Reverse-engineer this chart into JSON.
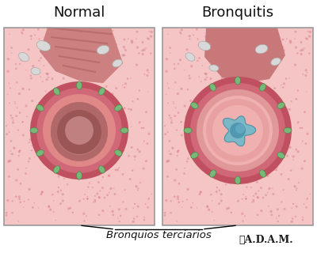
{
  "title_normal": "Normal",
  "title_bronquitis": "Bronquitis",
  "label": "Bronquios terciarios",
  "adam_text": "★A.D.A.M.",
  "bg_color": "#f5c5c5",
  "panel_bg": "#f5c5c5",
  "tissue_pink": "#e8929a",
  "tissue_dark": "#c86070",
  "green_nodes": "#7ab87a",
  "inner_normal_color": "#c07878",
  "inner_bronquitis_color": "#7ab8c8",
  "muscle_color": "#c87878",
  "white_cartilage": "#d8d8d8",
  "border_color": "#999999",
  "text_color": "#111111",
  "title_fontsize": 13,
  "label_fontsize": 9.5,
  "adam_fontsize": 9
}
